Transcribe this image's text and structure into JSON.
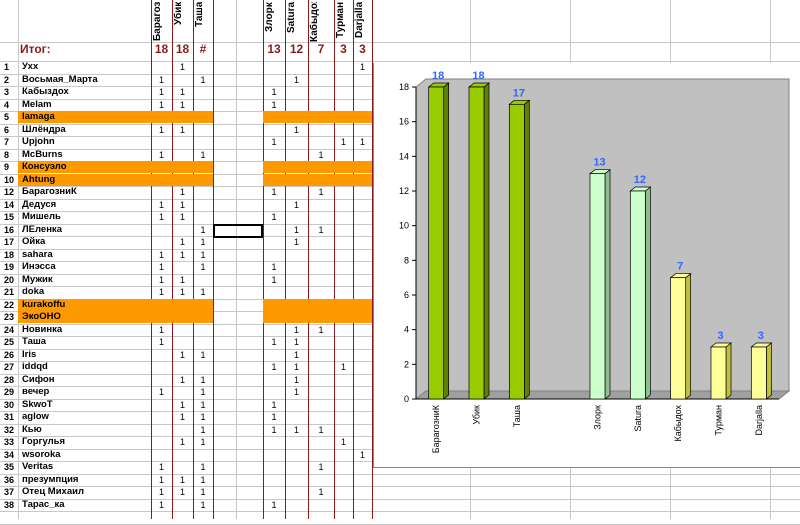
{
  "sheet": {
    "total_label": "Итог:",
    "columns": [
      {
        "header": "Барагоз",
        "total": "18"
      },
      {
        "header": "Убик",
        "total": "18"
      },
      {
        "header": "Таша",
        "total": "#"
      },
      {
        "header": "",
        "total": ""
      },
      {
        "header": "Злорк",
        "total": "13"
      },
      {
        "header": "Satura",
        "total": "12"
      },
      {
        "header": "Кабыдох",
        "total": "7"
      },
      {
        "header": "Турман",
        "total": "3"
      },
      {
        "header": "Darjalla",
        "total": "3"
      }
    ],
    "rows": [
      {
        "num": "1",
        "name": "Ухх",
        "highlight": false,
        "marks": [
          "",
          "1",
          "",
          "",
          "",
          "",
          "",
          "",
          "1"
        ]
      },
      {
        "num": "2",
        "name": "Восьмая_Марта",
        "highlight": false,
        "marks": [
          "1",
          "",
          "1",
          "",
          "",
          "1",
          "",
          "",
          ""
        ]
      },
      {
        "num": "3",
        "name": "Кабыздох",
        "highlight": false,
        "marks": [
          "1",
          "1",
          "",
          "",
          "1",
          "",
          "",
          "",
          ""
        ]
      },
      {
        "num": "4",
        "name": "Melam",
        "highlight": false,
        "marks": [
          "1",
          "1",
          "",
          "",
          "1",
          "",
          "",
          "",
          ""
        ]
      },
      {
        "num": "5",
        "name": "lamaga",
        "highlight": true,
        "marks": [
          "",
          "",
          "",
          "",
          "",
          "",
          "",
          "",
          ""
        ]
      },
      {
        "num": "6",
        "name": "Шлёндра",
        "highlight": false,
        "marks": [
          "1",
          "1",
          "",
          "",
          "",
          "1",
          "",
          "",
          ""
        ]
      },
      {
        "num": "7",
        "name": "Upjohn",
        "highlight": false,
        "marks": [
          "",
          "",
          "",
          "",
          "1",
          "",
          "",
          "1",
          "1"
        ]
      },
      {
        "num": "8",
        "name": "McBurns",
        "highlight": false,
        "marks": [
          "1",
          "",
          "1",
          "",
          "",
          "",
          "1",
          "",
          ""
        ]
      },
      {
        "num": "9",
        "name": "Консуэло",
        "highlight": true,
        "marks": [
          "",
          "",
          "",
          "",
          "",
          "",
          "",
          "",
          ""
        ]
      },
      {
        "num": "10",
        "name": "Ahtung",
        "highlight": true,
        "marks": [
          "",
          "",
          "",
          "",
          "",
          "",
          "",
          "",
          ""
        ]
      },
      {
        "num": "12",
        "name": "БарагозниК",
        "highlight": false,
        "marks": [
          "",
          "1",
          "",
          "",
          "1",
          "",
          "1",
          "",
          ""
        ]
      },
      {
        "num": "14",
        "name": "Дедуся",
        "highlight": false,
        "marks": [
          "1",
          "1",
          "",
          "",
          "",
          "1",
          "",
          "",
          ""
        ]
      },
      {
        "num": "15",
        "name": "Мишель",
        "highlight": false,
        "marks": [
          "1",
          "1",
          "",
          "",
          "1",
          "",
          "",
          "",
          ""
        ]
      },
      {
        "num": "16",
        "name": "ЛЕленка",
        "highlight": false,
        "marks": [
          "",
          "",
          "1",
          "",
          "",
          "1",
          "1",
          "",
          ""
        ]
      },
      {
        "num": "17",
        "name": "Ойка",
        "highlight": false,
        "marks": [
          "",
          "1",
          "1",
          "",
          "",
          "1",
          "",
          "",
          ""
        ]
      },
      {
        "num": "18",
        "name": "sahara",
        "highlight": false,
        "marks": [
          "1",
          "1",
          "1",
          "",
          "",
          "",
          "",
          "",
          ""
        ]
      },
      {
        "num": "19",
        "name": "Инэсса",
        "highlight": false,
        "marks": [
          "1",
          "",
          "1",
          "",
          "1",
          "",
          "",
          "",
          ""
        ]
      },
      {
        "num": "20",
        "name": "Мужик",
        "highlight": false,
        "marks": [
          "1",
          "1",
          "",
          "",
          "1",
          "",
          "",
          "",
          ""
        ]
      },
      {
        "num": "21",
        "name": "doka",
        "highlight": false,
        "marks": [
          "1",
          "1",
          "1",
          "",
          "",
          "",
          "",
          "",
          ""
        ]
      },
      {
        "num": "22",
        "name": "kurakoffu",
        "highlight": true,
        "marks": [
          "",
          "",
          "",
          "",
          "",
          "",
          "",
          "",
          ""
        ]
      },
      {
        "num": "23",
        "name": "ЭкоОНО",
        "highlight": true,
        "marks": [
          "",
          "",
          "",
          "",
          "",
          "",
          "",
          "",
          ""
        ]
      },
      {
        "num": "24",
        "name": "Новинка",
        "highlight": false,
        "marks": [
          "1",
          "",
          "",
          "",
          "",
          "1",
          "1",
          "",
          ""
        ]
      },
      {
        "num": "25",
        "name": "Таша",
        "highlight": false,
        "marks": [
          "1",
          "",
          "",
          "",
          "1",
          "1",
          "",
          "",
          ""
        ]
      },
      {
        "num": "26",
        "name": "Iris",
        "highlight": false,
        "marks": [
          "",
          "1",
          "1",
          "",
          "",
          "1",
          "",
          "",
          ""
        ]
      },
      {
        "num": "27",
        "name": "iddqd",
        "highlight": false,
        "marks": [
          "",
          "",
          "",
          "",
          "1",
          "1",
          "",
          "1",
          ""
        ]
      },
      {
        "num": "28",
        "name": "Сифон",
        "highlight": false,
        "marks": [
          "",
          "1",
          "1",
          "",
          "",
          "1",
          "",
          "",
          ""
        ]
      },
      {
        "num": "29",
        "name": "вечер",
        "highlight": false,
        "marks": [
          "1",
          "",
          "1",
          "",
          "",
          "1",
          "",
          "",
          ""
        ]
      },
      {
        "num": "30",
        "name": "SkwoT",
        "highlight": false,
        "marks": [
          "",
          "1",
          "1",
          "",
          "1",
          "",
          "",
          "",
          ""
        ]
      },
      {
        "num": "31",
        "name": "aglow",
        "highlight": false,
        "marks": [
          "",
          "1",
          "1",
          "",
          "1",
          "",
          "",
          "",
          ""
        ]
      },
      {
        "num": "32",
        "name": "Кью",
        "highlight": false,
        "marks": [
          "",
          "",
          "1",
          "",
          "1",
          "1",
          "1",
          "",
          ""
        ]
      },
      {
        "num": "33",
        "name": "Горгулья",
        "highlight": false,
        "marks": [
          "",
          "1",
          "1",
          "",
          "",
          "",
          "",
          "1",
          ""
        ]
      },
      {
        "num": "34",
        "name": "wsoroka",
        "highlight": false,
        "marks": [
          "",
          "",
          "",
          "",
          "",
          "",
          "",
          "",
          "1"
        ]
      },
      {
        "num": "35",
        "name": "Veritas",
        "highlight": false,
        "marks": [
          "1",
          "",
          "1",
          "",
          "",
          "",
          "1",
          "",
          ""
        ]
      },
      {
        "num": "36",
        "name": "презумпция",
        "highlight": false,
        "marks": [
          "1",
          "1",
          "1",
          "",
          "",
          "",
          "",
          "",
          ""
        ]
      },
      {
        "num": "37",
        "name": "Отец Михаил",
        "highlight": false,
        "marks": [
          "1",
          "1",
          "1",
          "",
          "",
          "",
          "1",
          "",
          ""
        ]
      },
      {
        "num": "38",
        "name": "Тарас_ка",
        "highlight": false,
        "marks": [
          "1",
          "",
          "1",
          "",
          "1",
          "",
          "",
          "",
          ""
        ]
      }
    ]
  },
  "colors": {
    "orange": "#ff9900",
    "header_red": "#8b1a1a",
    "plot_bg": "#c0c0c0",
    "bar_green": "#99cc00",
    "bar_lightgreen": "#ccffcc",
    "bar_yellow": "#ffff99",
    "value_label": "#3366ff"
  },
  "chart_data": {
    "type": "bar",
    "title": "",
    "xlabel": "",
    "ylabel": "",
    "ylim": [
      0,
      18
    ],
    "yticks": [
      "0",
      "2",
      "4",
      "6",
      "8",
      "10",
      "12",
      "14",
      "16",
      "18"
    ],
    "grid": false,
    "bar_style": "3d",
    "categories": [
      "БарагозниК",
      "Убик",
      "Таша",
      "",
      "Злорк",
      "Satura",
      "Кабыдох",
      "Турман",
      "Darjalla"
    ],
    "values": [
      18,
      18,
      17,
      null,
      13,
      12,
      7,
      3,
      3
    ],
    "value_labels": [
      "18",
      "18",
      "17",
      "",
      "13",
      "12",
      "7",
      "3",
      "3"
    ],
    "bar_colors": [
      "green",
      "green",
      "green",
      "",
      "lightgreen",
      "lightgreen",
      "yellow",
      "yellow",
      "yellow"
    ]
  }
}
